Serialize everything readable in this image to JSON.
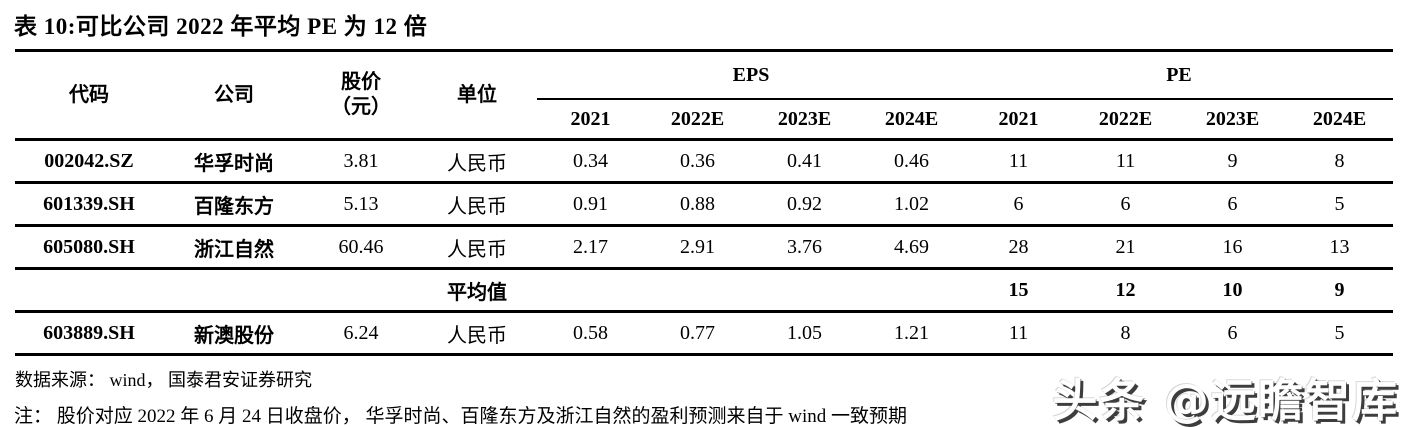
{
  "title": "表 10:可比公司 2022 年平均 PE 为 12 倍",
  "table": {
    "headers": {
      "code": "代码",
      "company": "公司",
      "price_line1": "股价",
      "price_line2": "（元）",
      "unit": "单位",
      "eps_group": "EPS",
      "pe_group": "PE",
      "years": [
        "2021",
        "2022E",
        "2023E",
        "2024E",
        "2021",
        "2022E",
        "2023E",
        "2024E"
      ]
    },
    "rows": [
      {
        "code": "002042.SZ",
        "company": "华孚时尚",
        "price": "3.81",
        "unit": "人民币",
        "eps": [
          "0.34",
          "0.36",
          "0.41",
          "0.46"
        ],
        "pe": [
          "11",
          "11",
          "9",
          "8"
        ]
      },
      {
        "code": "601339.SH",
        "company": "百隆东方",
        "price": "5.13",
        "unit": "人民币",
        "eps": [
          "0.91",
          "0.88",
          "0.92",
          "1.02"
        ],
        "pe": [
          "6",
          "6",
          "6",
          "5"
        ]
      },
      {
        "code": "605080.SH",
        "company": "浙江自然",
        "price": "60.46",
        "unit": "人民币",
        "eps": [
          "2.17",
          "2.91",
          "3.76",
          "4.69"
        ],
        "pe": [
          "28",
          "21",
          "16",
          "13"
        ]
      }
    ],
    "average_row": {
      "label": "平均值",
      "pe": [
        "15",
        "12",
        "10",
        "9"
      ]
    },
    "extra_row": {
      "code": "603889.SH",
      "company": "新澳股份",
      "price": "6.24",
      "unit": "人民币",
      "eps": [
        "0.58",
        "0.77",
        "1.05",
        "1.21"
      ],
      "pe": [
        "11",
        "8",
        "6",
        "5"
      ]
    }
  },
  "source": "数据来源： wind， 国泰君安证券研究",
  "note": "注： 股价对应 2022 年 6 月 24 日收盘价， 华孚时尚、百隆东方及浙江自然的盈利预测来自于 wind 一致预期",
  "watermark": "头条 @远瞻智库"
}
